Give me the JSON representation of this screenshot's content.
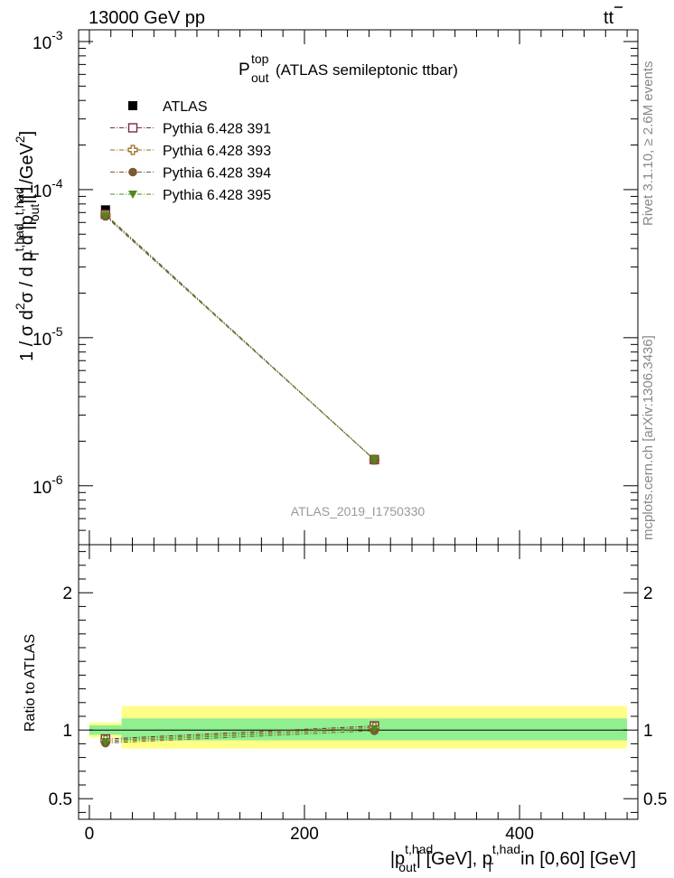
{
  "header": {
    "left": "13000 GeV pp",
    "right_base": "t",
    "right_bar": "t"
  },
  "side_labels": {
    "rivet": "Rivet 3.1.10, ≥ 2.6M events",
    "mcplots": "mcplots.cern.ch [arXiv:1306.3436]"
  },
  "chart_data": [
    {
      "type": "line",
      "panel": "main",
      "title_main": "P",
      "title_sup": "top",
      "title_sub": "out",
      "title_suffix": "(ATLAS semileptonic ttbar)",
      "watermark": "ATLAS_2019_I1750330",
      "ylabel_parts": [
        "1 / σ d",
        "2",
        "σ / d p",
        "t,had",
        "T",
        " d |p",
        "t,had",
        "out",
        "|[1/GeV",
        "2",
        "]"
      ],
      "yscale": "log",
      "ylim": [
        4e-07,
        0.0012
      ],
      "xlim": [
        -10,
        510
      ],
      "yticks": [
        {
          "value": 1e-06,
          "mantissa": "10",
          "exp": "-6"
        },
        {
          "value": 1e-05,
          "mantissa": "10",
          "exp": "-5"
        },
        {
          "value": 0.0001,
          "mantissa": "10",
          "exp": "-4"
        },
        {
          "value": 0.001,
          "mantissa": "10",
          "exp": "-3"
        }
      ],
      "x": [
        15,
        265
      ],
      "series": [
        {
          "name": "ATLAS",
          "marker": "filled-square",
          "color": "#000000",
          "values": [
            7.3e-05,
            1.5e-06
          ]
        },
        {
          "name": "Pythia 6.428 391",
          "marker": "open-square",
          "color": "#7a2a40",
          "values": [
            6.8e-05,
            1.5e-06
          ]
        },
        {
          "name": "Pythia 6.428 393",
          "marker": "open-cross",
          "color": "#9a6a1a",
          "values": [
            6.7e-05,
            1.5e-06
          ]
        },
        {
          "name": "Pythia 6.428 394",
          "marker": "filled-circle",
          "color": "#7a5a32",
          "values": [
            6.6e-05,
            1.5e-06
          ]
        },
        {
          "name": "Pythia 6.428 395",
          "marker": "filled-triangle",
          "color": "#4f8a1e",
          "values": [
            6.7e-05,
            1.5e-06
          ]
        }
      ]
    },
    {
      "type": "line",
      "panel": "ratio",
      "ylabel": "Ratio to ATLAS",
      "xlabel_parts": [
        "|p",
        "t,had",
        "out",
        "| [GeV], p",
        "t,had",
        "T",
        " in [0,60] [GeV]"
      ],
      "xlim": [
        -10,
        510
      ],
      "ylim": [
        0.35,
        2.35
      ],
      "xticks": [
        0,
        200,
        400
      ],
      "yticks": [
        0.5,
        1,
        2
      ],
      "bins": [
        [
          0,
          30
        ],
        [
          30,
          500
        ]
      ],
      "band_inner": [
        [
          0.965,
          1.035
        ],
        [
          0.925,
          1.085
        ]
      ],
      "band_outer": [
        [
          0.945,
          1.055
        ],
        [
          0.865,
          1.175
        ]
      ],
      "x": [
        15,
        265
      ],
      "series": [
        {
          "name": "Pythia 6.428 391",
          "values": [
            0.935,
            1.03
          ]
        },
        {
          "name": "Pythia 6.428 393",
          "values": [
            0.925,
            1.02
          ]
        },
        {
          "name": "Pythia 6.428 394",
          "values": [
            0.905,
            0.995
          ]
        },
        {
          "name": "Pythia 6.428 395",
          "values": [
            0.915,
            1.01
          ]
        }
      ]
    }
  ]
}
